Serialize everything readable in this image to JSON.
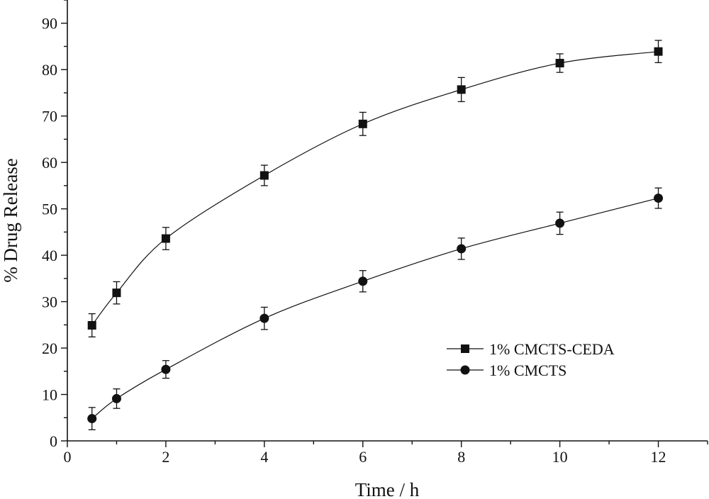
{
  "chart_data": {
    "type": "line",
    "title": "",
    "xlabel": "Time / h",
    "ylabel": "% Drug Release",
    "xlim": [
      0,
      13
    ],
    "ylim": [
      0,
      95
    ],
    "x_ticks": [
      0,
      2,
      4,
      6,
      8,
      10,
      12
    ],
    "y_ticks": [
      0,
      10,
      20,
      30,
      40,
      50,
      60,
      70,
      80,
      90
    ],
    "grid": false,
    "legend_position": "lower-right",
    "series": [
      {
        "name": "1% CMCTS-CEDA",
        "marker": "square",
        "color": "#111111",
        "x": [
          0.5,
          1,
          2,
          4,
          6,
          8,
          10,
          12
        ],
        "y": [
          24.9,
          31.9,
          43.6,
          57.2,
          68.3,
          75.7,
          81.4,
          83.9
        ],
        "error": [
          2.5,
          2.4,
          2.4,
          2.2,
          2.5,
          2.6,
          2.0,
          2.4
        ]
      },
      {
        "name": "1% CMCTS",
        "marker": "circle",
        "color": "#111111",
        "x": [
          0.5,
          1,
          2,
          4,
          6,
          8,
          10,
          12
        ],
        "y": [
          4.8,
          9.1,
          15.4,
          26.4,
          34.4,
          41.4,
          46.9,
          52.3
        ],
        "error": [
          2.4,
          2.1,
          1.9,
          2.4,
          2.3,
          2.3,
          2.4,
          2.2
        ]
      }
    ]
  }
}
